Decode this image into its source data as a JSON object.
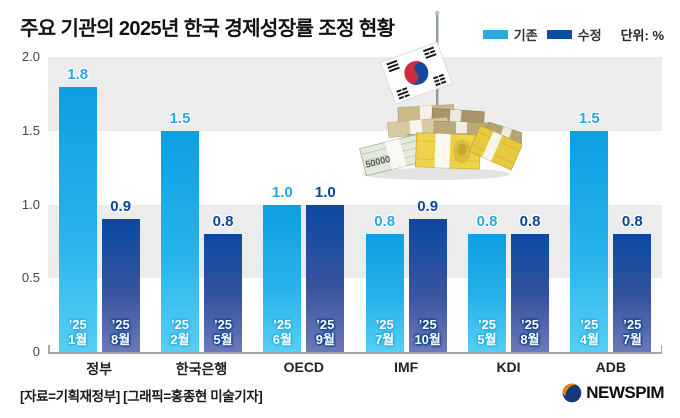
{
  "title": "주요 기관의 2025년 한국 경제성장률 조정 현황",
  "legend": {
    "existing_label": "기존",
    "revised_label": "수정",
    "unit_label": "단위: %"
  },
  "colors": {
    "existing": "#29abe2",
    "revised": "#0c4da2",
    "existing_value_label": "#27a7e0",
    "revised_value_label": "#0a4596",
    "band_gray": "#ececec",
    "axis": "#a8a8a8"
  },
  "chart_data": {
    "type": "bar",
    "title": "주요 기관의 2025년 한국 경제성장률 조정 현황",
    "unit": "%",
    "categories": [
      "정부",
      "한국은행",
      "OECD",
      "IMF",
      "KDI",
      "ADB"
    ],
    "series": [
      {
        "name": "기존",
        "values": [
          1.8,
          1.5,
          1.0,
          0.8,
          0.8,
          1.5
        ],
        "bar_tags": [
          [
            "’25",
            "1월"
          ],
          [
            "’25",
            "2월"
          ],
          [
            "’25",
            "6월"
          ],
          [
            "’25",
            "7월"
          ],
          [
            "’25",
            "5월"
          ],
          [
            "’25",
            "4월"
          ]
        ]
      },
      {
        "name": "수정",
        "values": [
          0.9,
          0.8,
          1.0,
          0.9,
          0.8,
          0.8
        ],
        "bar_tags": [
          [
            "’25",
            "8월"
          ],
          [
            "’25",
            "5월"
          ],
          [
            "’25",
            "9월"
          ],
          [
            "’25",
            "10월"
          ],
          [
            "’25",
            "8월"
          ],
          [
            "’25",
            "7월"
          ]
        ]
      }
    ],
    "ylim": [
      0,
      2.0
    ],
    "yticks": [
      {
        "value": 2.0,
        "label": "2.0"
      },
      {
        "value": 1.5,
        "label": "1.5"
      },
      {
        "value": 1.0,
        "label": "1.0"
      },
      {
        "value": 0.5,
        "label": "0.5"
      },
      {
        "value": 0,
        "label": "0"
      }
    ],
    "grid": "alternating-gray-bands",
    "legend_position": "top-right"
  },
  "decoration": {
    "flag": "south-korea-flag-on-pole",
    "money_text": "50000"
  },
  "footer": {
    "source": "[자료=기획재정부] [그래픽=홍종현 미술기자]",
    "logo_text": "NEWSPIM"
  }
}
